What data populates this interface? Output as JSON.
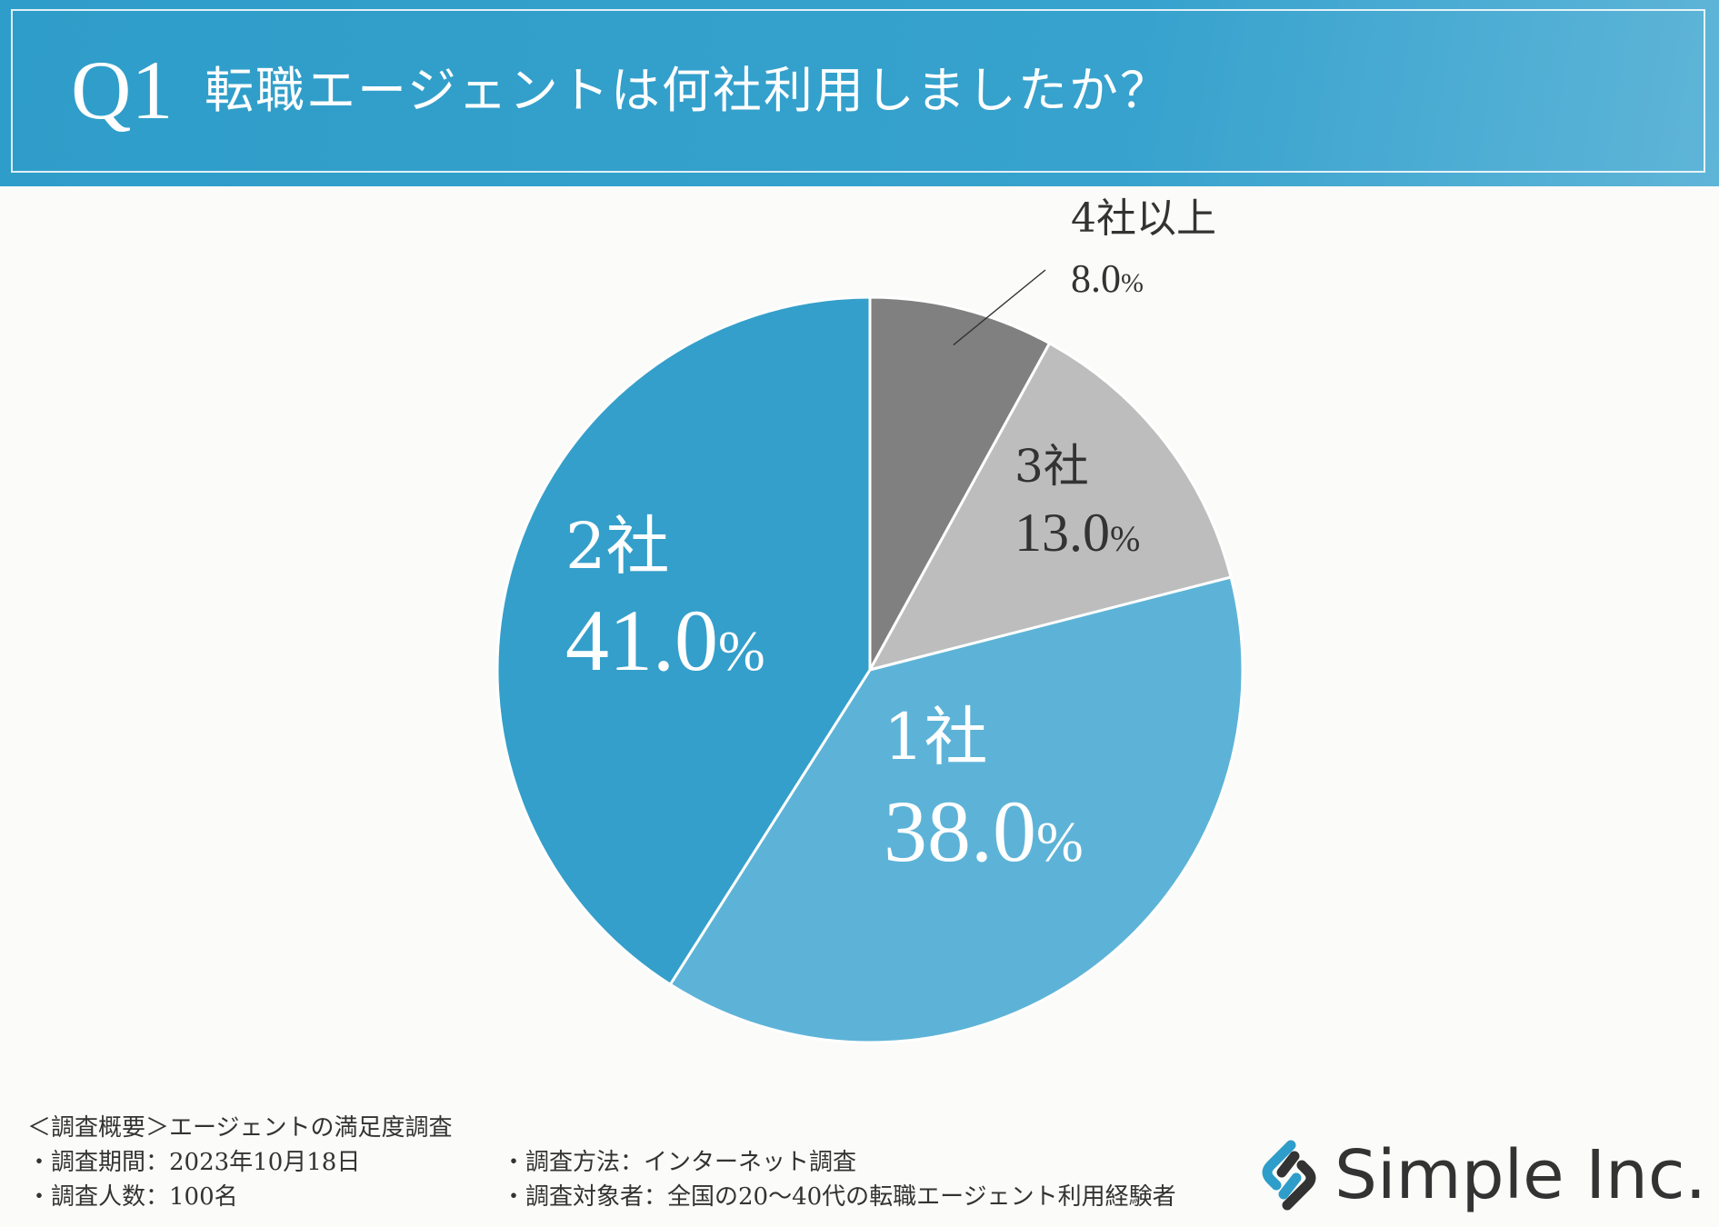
{
  "header": {
    "question_number": "Q1",
    "question_text": "転職エージェントは何社利用しましたか？"
  },
  "chart_data": {
    "type": "pie",
    "start": "12 o'clock, clockwise",
    "slices": [
      {
        "category": "4社以上",
        "value": 8.0,
        "label": "8.0",
        "unit": "%",
        "color": "#808080",
        "label_color": "#333333"
      },
      {
        "category": "3社",
        "value": 13.0,
        "label": "13.0",
        "unit": "%",
        "color": "#bdbdbd",
        "label_color": "#333333"
      },
      {
        "category": "1社",
        "value": 38.0,
        "label": "38.0",
        "unit": "%",
        "color": "#5db3d7",
        "label_color": "#ffffff"
      },
      {
        "category": "2社",
        "value": 41.0,
        "label": "41.0",
        "unit": "%",
        "color": "#349fca",
        "label_color": "#ffffff"
      }
    ]
  },
  "survey": {
    "title": "＜調査概要＞エージェントの満足度調査",
    "period": "・調査期間：2023年10月18日",
    "method": "・調査方法：インターネット調査",
    "count": "・調査人数：100名",
    "target": "・調査対象者：全国の20～40代の転職エージェント利用経験者"
  },
  "brand": {
    "name": "Simple Inc.",
    "logo_icon": "chain-link-logo-icon",
    "logo_colors": [
      "#2f9dc9",
      "#333333"
    ]
  }
}
